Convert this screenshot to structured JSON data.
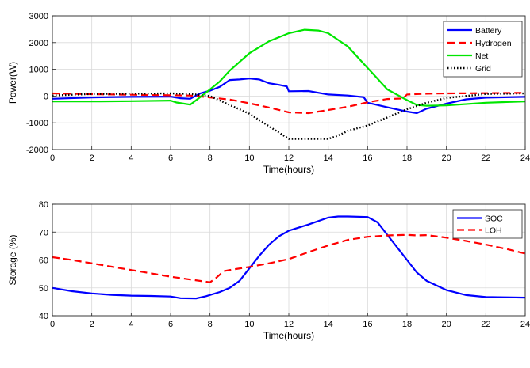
{
  "chart_data": [
    {
      "type": "line",
      "xlabel": "Time(hours)",
      "ylabel": "Power(W)",
      "xlim": [
        0,
        24
      ],
      "ylim": [
        -2000,
        3000
      ],
      "xticks": [
        "0",
        "2",
        "4",
        "6",
        "8",
        "10",
        "12",
        "14",
        "16",
        "18",
        "20",
        "22",
        "24"
      ],
      "yticks": [
        "-2000",
        "-1000",
        "0",
        "1000",
        "2000",
        "3000"
      ],
      "grid": true,
      "legend": "top-right",
      "series": [
        {
          "name": "Battery",
          "color": "#0000ff",
          "style": "solid",
          "points": [
            [
              0,
              -100
            ],
            [
              2,
              -50
            ],
            [
              4,
              -30
            ],
            [
              6,
              -20
            ],
            [
              6.5,
              -80
            ],
            [
              7,
              -100
            ],
            [
              7.5,
              100
            ],
            [
              8,
              200
            ],
            [
              8.5,
              350
            ],
            [
              9,
              600
            ],
            [
              9.5,
              620
            ],
            [
              10,
              660
            ],
            [
              10.5,
              620
            ],
            [
              11,
              480
            ],
            [
              11.5,
              420
            ],
            [
              11.9,
              360
            ],
            [
              12,
              180
            ],
            [
              13,
              190
            ],
            [
              14,
              60
            ],
            [
              15,
              20
            ],
            [
              15.8,
              -40
            ],
            [
              16,
              -250
            ],
            [
              17,
              -420
            ],
            [
              18,
              -580
            ],
            [
              18.5,
              -640
            ],
            [
              19,
              -470
            ],
            [
              20,
              -280
            ],
            [
              21,
              -120
            ],
            [
              22,
              -60
            ],
            [
              24,
              -30
            ]
          ]
        },
        {
          "name": "Hydrogen",
          "color": "#ff0000",
          "style": "dashed",
          "points": [
            [
              0,
              100
            ],
            [
              2,
              70
            ],
            [
              4,
              50
            ],
            [
              6,
              30
            ],
            [
              7,
              20
            ],
            [
              8,
              -50
            ],
            [
              9,
              -130
            ],
            [
              10,
              -270
            ],
            [
              11,
              -430
            ],
            [
              12,
              -610
            ],
            [
              13,
              -640
            ],
            [
              14,
              -520
            ],
            [
              15,
              -400
            ],
            [
              16,
              -230
            ],
            [
              17,
              -110
            ],
            [
              17.8,
              -90
            ],
            [
              18,
              60
            ],
            [
              19,
              90
            ],
            [
              20,
              100
            ],
            [
              22,
              110
            ],
            [
              24,
              120
            ]
          ]
        },
        {
          "name": "Net",
          "color": "#00e600",
          "style": "solid",
          "points": [
            [
              0,
              -200
            ],
            [
              2,
              -200
            ],
            [
              4,
              -190
            ],
            [
              6,
              -170
            ],
            [
              6.3,
              -240
            ],
            [
              7,
              -320
            ],
            [
              7.5,
              -40
            ],
            [
              8,
              250
            ],
            [
              8.5,
              550
            ],
            [
              9,
              950
            ],
            [
              10,
              1600
            ],
            [
              11,
              2050
            ],
            [
              12,
              2350
            ],
            [
              12.8,
              2480
            ],
            [
              13.5,
              2450
            ],
            [
              14,
              2350
            ],
            [
              15,
              1850
            ],
            [
              16,
              1050
            ],
            [
              16.5,
              650
            ],
            [
              17,
              250
            ],
            [
              18,
              -150
            ],
            [
              18.5,
              -330
            ],
            [
              19,
              -360
            ],
            [
              20,
              -350
            ],
            [
              22,
              -250
            ],
            [
              24,
              -200
            ]
          ]
        },
        {
          "name": "Grid",
          "color": "#000000",
          "style": "dotted",
          "points": [
            [
              0,
              20
            ],
            [
              2,
              80
            ],
            [
              4,
              90
            ],
            [
              6,
              100
            ],
            [
              7,
              80
            ],
            [
              8,
              0
            ],
            [
              9,
              -330
            ],
            [
              10,
              -660
            ],
            [
              11,
              -1130
            ],
            [
              12,
              -1600
            ],
            [
              13,
              -1600
            ],
            [
              14,
              -1600
            ],
            [
              14.5,
              -1480
            ],
            [
              15,
              -1300
            ],
            [
              16,
              -1100
            ],
            [
              17,
              -800
            ],
            [
              18,
              -490
            ],
            [
              19,
              -250
            ],
            [
              20,
              -70
            ],
            [
              22,
              80
            ],
            [
              24,
              100
            ]
          ]
        }
      ]
    },
    {
      "type": "line",
      "xlabel": "Time(hours)",
      "ylabel": "Storage (%)",
      "xlim": [
        0,
        24
      ],
      "ylim": [
        40,
        80
      ],
      "xticks": [
        "0",
        "2",
        "4",
        "6",
        "8",
        "10",
        "12",
        "14",
        "16",
        "18",
        "20",
        "22",
        "24"
      ],
      "yticks": [
        "40",
        "50",
        "60",
        "70",
        "80"
      ],
      "grid": true,
      "legend": "top-right",
      "series": [
        {
          "name": "SOC",
          "color": "#0000ff",
          "style": "solid",
          "points": [
            [
              0,
              50
            ],
            [
              1,
              48.8
            ],
            [
              2,
              48
            ],
            [
              3,
              47.5
            ],
            [
              4,
              47.2
            ],
            [
              5,
              47.1
            ],
            [
              6,
              46.9
            ],
            [
              6.5,
              46.3
            ],
            [
              7.3,
              46.2
            ],
            [
              7.8,
              47
            ],
            [
              8.5,
              48.5
            ],
            [
              9,
              50
            ],
            [
              9.5,
              52.5
            ],
            [
              10,
              57
            ],
            [
              10.5,
              61.5
            ],
            [
              11,
              65.5
            ],
            [
              11.5,
              68.5
            ],
            [
              12,
              70.5
            ],
            [
              13,
              72.7
            ],
            [
              14,
              75.2
            ],
            [
              14.5,
              75.6
            ],
            [
              15,
              75.6
            ],
            [
              16,
              75.4
            ],
            [
              16.5,
              73.5
            ],
            [
              17,
              69
            ],
            [
              18,
              60
            ],
            [
              18.5,
              55.5
            ],
            [
              19,
              52.5
            ],
            [
              20,
              49.2
            ],
            [
              21,
              47.4
            ],
            [
              22,
              46.7
            ],
            [
              23,
              46.6
            ],
            [
              24,
              46.5
            ]
          ]
        },
        {
          "name": "LOH",
          "color": "#ff0000",
          "style": "dashed",
          "points": [
            [
              0,
              61
            ],
            [
              1,
              60
            ],
            [
              2,
              58.8
            ],
            [
              3,
              57.6
            ],
            [
              4,
              56.4
            ],
            [
              5,
              55.2
            ],
            [
              6,
              54
            ],
            [
              7,
              53
            ],
            [
              8,
              52
            ],
            [
              8.3,
              53.5
            ],
            [
              8.7,
              56
            ],
            [
              9,
              56.4
            ],
            [
              10,
              57.5
            ],
            [
              11,
              58.8
            ],
            [
              12,
              60.3
            ],
            [
              13,
              62.8
            ],
            [
              14,
              65.2
            ],
            [
              15,
              67.2
            ],
            [
              16,
              68.3
            ],
            [
              17,
              68.8
            ],
            [
              18,
              69
            ],
            [
              18.5,
              68.8
            ],
            [
              19,
              68.9
            ],
            [
              20,
              68
            ],
            [
              21,
              66.8
            ],
            [
              22,
              65.5
            ],
            [
              23,
              64
            ],
            [
              24,
              62.3
            ]
          ]
        }
      ]
    }
  ]
}
